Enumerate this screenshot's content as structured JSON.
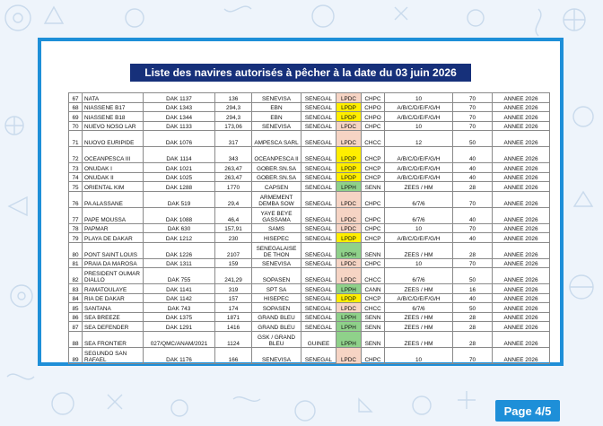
{
  "document": {
    "title": "Liste des navires autorisés à pêcher à la date du 03 juin 2026",
    "page_label": "Page 4/5"
  },
  "colors": {
    "frame_blue": "#1e8fd8",
    "title_navy": "#16307a",
    "lpdc": "#f6d4c4",
    "lpdp": "#ffee00",
    "lpph": "#8fd18a"
  },
  "rows": [
    {
      "n": "67",
      "name": "NATA",
      "reg": "DAK 1137",
      "gt": "136",
      "owner": "SENEVISA",
      "flag": "SENEGAL",
      "lic": "LPDC",
      "cat": "CHPC",
      "zones": "10",
      "len": "70",
      "year": "ANNEE 2026",
      "h": "n"
    },
    {
      "n": "68",
      "name": "NIASSENE B17",
      "reg": "DAK 1343",
      "gt": "294,3",
      "owner": "EBN",
      "flag": "SENEGAL",
      "lic": "LPDP",
      "cat": "CHPO",
      "zones": "A/B/C/D/E/F/G/H",
      "len": "70",
      "year": "ANNEE 2026",
      "h": "n"
    },
    {
      "n": "69",
      "name": "NIASSENE B18",
      "reg": "DAK 1344",
      "gt": "294,3",
      "owner": "EBN",
      "flag": "SENEGAL",
      "lic": "LPDP",
      "cat": "CHPO",
      "zones": "A/B/C/D/E/F/G/H",
      "len": "70",
      "year": "ANNEE 2026",
      "h": "n"
    },
    {
      "n": "70",
      "name": "NUEVO NOSO LAR",
      "reg": "DAK 1133",
      "gt": "173,06",
      "owner": "SENEVISA",
      "flag": "SENEGAL",
      "lic": "LPDC",
      "cat": "CHPC",
      "zones": "10",
      "len": "70",
      "year": "ANNEE 2026",
      "h": "n"
    },
    {
      "n": "71",
      "name": "NUOVO EURIPIDE",
      "reg": "DAK 1076",
      "gt": "317",
      "owner": "AMPESCA SARL",
      "flag": "SENEGAL",
      "lic": "LPDC",
      "cat": "CHCC",
      "zones": "12",
      "len": "50",
      "year": "ANNEE 2026",
      "h": "t"
    },
    {
      "n": "72",
      "name": "OCEANPESCA III",
      "reg": "DAK 1114",
      "gt": "343",
      "owner": "OCEANPESCA II",
      "flag": "SENEGAL",
      "lic": "LPDP",
      "cat": "CHCP",
      "zones": "A/B/C/D/E/F/G/H",
      "len": "40",
      "year": "ANNEE 2026",
      "h": "t"
    },
    {
      "n": "73",
      "name": "ONUDAK I",
      "reg": "DAK 1021",
      "gt": "263,47",
      "owner": "GOBER.SN.SA",
      "flag": "SENEGAL",
      "lic": "LPDP",
      "cat": "CHCP",
      "zones": "A/B/C/D/E/F/G/H",
      "len": "40",
      "year": "ANNEE 2026",
      "h": "n"
    },
    {
      "n": "74",
      "name": "ONUDAK II",
      "reg": "DAK 1025",
      "gt": "263,47",
      "owner": "GOBER.SN.SA",
      "flag": "SENEGAL",
      "lic": "LPDP",
      "cat": "CHCP",
      "zones": "A/B/C/D/E/F/G/H",
      "len": "40",
      "year": "ANNEE 2026",
      "h": "n"
    },
    {
      "n": "75",
      "name": "ORIENTAL KIM",
      "reg": "DAK 1288",
      "gt": "1770",
      "owner": "CAPSEN",
      "flag": "SENEGAL",
      "lic": "LPPH",
      "cat": "SENN",
      "zones": "ZEES / HM",
      "len": "28",
      "year": "ANNEE 2026",
      "h": "n"
    },
    {
      "n": "76",
      "name": "PA ALASSANE",
      "reg": "DAK 519",
      "gt": "29,4",
      "owner": "ARMEMENT DEMBA SOW",
      "flag": "SENEGAL",
      "lic": "LPDC",
      "cat": "CHPC",
      "zones": "6/7/6",
      "len": "70",
      "year": "ANNEE 2026",
      "h": "t"
    },
    {
      "n": "77",
      "name": "PAPE MOUSSA",
      "reg": "DAK 1088",
      "gt": "46,4",
      "owner": "YAYE BEYE GASSAMA",
      "flag": "SENEGAL",
      "lic": "LPDC",
      "cat": "CHPC",
      "zones": "6/7/6",
      "len": "40",
      "year": "ANNEE 2026",
      "h": "t"
    },
    {
      "n": "78",
      "name": "PAPMAR",
      "reg": "DAK 630",
      "gt": "157,91",
      "owner": "SAMS",
      "flag": "SENEGAL",
      "lic": "LPDC",
      "cat": "CHPC",
      "zones": "10",
      "len": "70",
      "year": "ANNEE 2026",
      "h": "n"
    },
    {
      "n": "79",
      "name": "PLAYA DE DAKAR",
      "reg": "DAK 1212",
      "gt": "230",
      "owner": "HISEPEC",
      "flag": "SENEGAL",
      "lic": "LPDP",
      "cat": "CHCP",
      "zones": "A/B/C/D/E/F/G/H",
      "len": "40",
      "year": "ANNEE 2026",
      "h": "n"
    },
    {
      "n": "80",
      "name": "PONT SAINT LOUIS",
      "reg": "DAK 1226",
      "gt": "2107",
      "owner": "SENEGALAISE DE THON",
      "flag": "SENEGAL",
      "lic": "LPPH",
      "cat": "SENN",
      "zones": "ZEES / HM",
      "len": "28",
      "year": "ANNEE 2026",
      "h": "t"
    },
    {
      "n": "81",
      "name": "PRAIA DA MAROSA",
      "reg": "DAK 1311",
      "gt": "159",
      "owner": "SENEVISA",
      "flag": "SENEGAL",
      "lic": "LPDC",
      "cat": "CHPC",
      "zones": "10",
      "len": "70",
      "year": "ANNEE 2026",
      "h": "n"
    },
    {
      "n": "82",
      "name": "PRESIDENT OUMAR DIALLO",
      "reg": "DAK 755",
      "gt": "241,29",
      "owner": "SOPASEN",
      "flag": "SENEGAL",
      "lic": "LPDC",
      "cat": "CHCC",
      "zones": "6/7/6",
      "len": "50",
      "year": "ANNEE 2026",
      "h": "t"
    },
    {
      "n": "83",
      "name": "RAMATOULAYE",
      "reg": "DAK 1141",
      "gt": "319",
      "owner": "SPT SA",
      "flag": "SENEGAL",
      "lic": "LPPH",
      "cat": "CANN",
      "zones": "ZEES / HM",
      "len": "16",
      "year": "ANNEE 2026",
      "h": "n"
    },
    {
      "n": "84",
      "name": "RIA DE DAKAR",
      "reg": "DAK 1142",
      "gt": "157",
      "owner": "HISEPEC",
      "flag": "SENEGAL",
      "lic": "LPDP",
      "cat": "CHCP",
      "zones": "A/B/C/D/E/F/G/H",
      "len": "40",
      "year": "ANNEE 2026",
      "h": "n"
    },
    {
      "n": "85",
      "name": "SANTANA",
      "reg": "DAK 743",
      "gt": "174",
      "owner": "SOPASEN",
      "flag": "SENEGAL",
      "lic": "LPDC",
      "cat": "CHCC",
      "zones": "6/7/6",
      "len": "50",
      "year": "ANNEE 2026",
      "h": "n"
    },
    {
      "n": "86",
      "name": "SEA BREEZE",
      "reg": "DAK 1375",
      "gt": "1871",
      "owner": "GRAND BLEU",
      "flag": "SENEGAL",
      "lic": "LPPH",
      "cat": "SENN",
      "zones": "ZEES / HM",
      "len": "28",
      "year": "ANNEE 2026",
      "h": "n"
    },
    {
      "n": "87",
      "name": "SEA DEFENDER",
      "reg": "DAK 1291",
      "gt": "1416",
      "owner": "GRAND BLEU",
      "flag": "SENEGAL",
      "lic": "LPPH",
      "cat": "SENN",
      "zones": "ZEES / HM",
      "len": "28",
      "year": "ANNEE 2026",
      "h": "n"
    },
    {
      "n": "88",
      "name": "SEA FRONTIER",
      "reg": "027/QMC/ANAM/2021",
      "gt": "1124",
      "owner": "GSK / GRAND BLEU",
      "flag": "GUINEE",
      "lic": "LPPH",
      "cat": "SENN",
      "zones": "ZEES / HM",
      "len": "28",
      "year": "ANNEE 2026",
      "h": "t"
    },
    {
      "n": "89",
      "name": "SEGUNDO SAN RAFAEL",
      "reg": "DAK 1176",
      "gt": "166",
      "owner": "SENEVISA",
      "flag": "SENEGAL",
      "lic": "LPDC",
      "cat": "CHPC",
      "zones": "10",
      "len": "70",
      "year": "ANNEE 2026",
      "h": "t"
    }
  ]
}
